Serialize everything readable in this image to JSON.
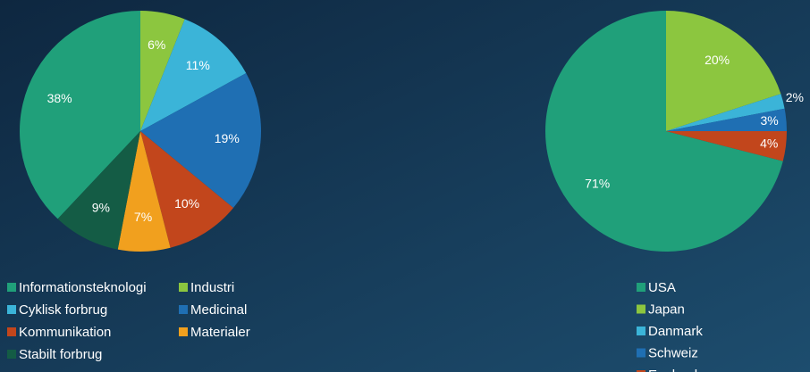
{
  "chart_data": [
    {
      "type": "pie",
      "categories": [
        "Informationsteknologi",
        "Industri",
        "Cyklisk forbrug",
        "Medicinal",
        "Kommunikation",
        "Materialer",
        "Stabilt forbrug"
      ],
      "values": [
        38,
        6,
        11,
        19,
        10,
        7,
        9
      ],
      "value_labels": [
        "38%",
        "6%",
        "11%",
        "19%",
        "10%",
        "7%",
        "9%"
      ],
      "colors": [
        "#20a07a",
        "#8cc63f",
        "#3bb4d8",
        "#1f6fb3",
        "#c2461c",
        "#f1a01e",
        "#145c45"
      ]
    },
    {
      "type": "pie",
      "categories": [
        "USA",
        "Japan",
        "Danmark",
        "Schweiz",
        "England"
      ],
      "values": [
        71,
        20,
        2,
        3,
        4
      ],
      "value_labels": [
        "71%",
        "20%",
        "2%",
        "3%",
        "4%"
      ],
      "colors": [
        "#20a07a",
        "#8cc63f",
        "#3bb4d8",
        "#1f6fb3",
        "#c2461c"
      ]
    }
  ]
}
